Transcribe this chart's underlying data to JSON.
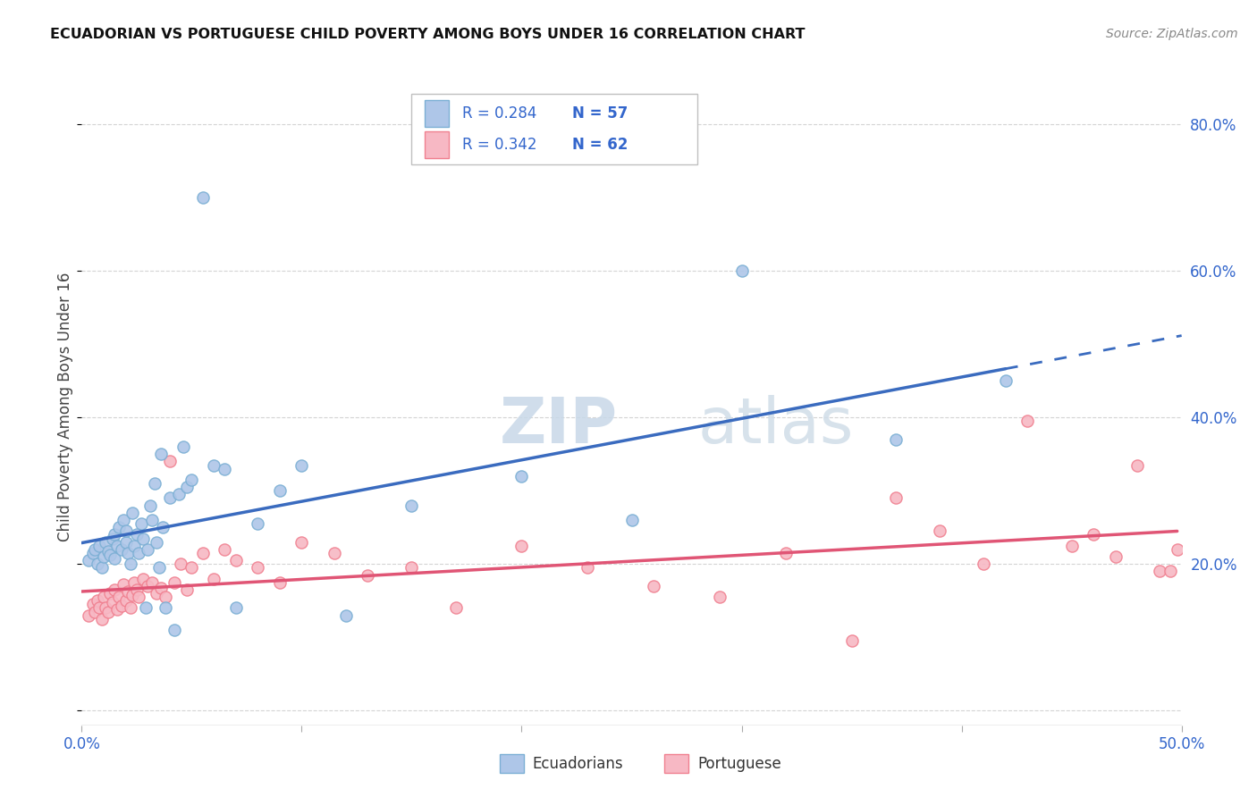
{
  "title": "ECUADORIAN VS PORTUGUESE CHILD POVERTY AMONG BOYS UNDER 16 CORRELATION CHART",
  "source": "Source: ZipAtlas.com",
  "ylabel": "Child Poverty Among Boys Under 16",
  "xlim": [
    0.0,
    0.5
  ],
  "ylim": [
    -0.02,
    0.85
  ],
  "ecuador_color": "#7bafd4",
  "ecuador_fill": "#aec6e8",
  "portuguese_color": "#f08090",
  "portuguese_fill": "#f7b8c4",
  "line_ecuador_color": "#3a6bbf",
  "line_portuguese_color": "#e05575",
  "R_ecuador": 0.284,
  "N_ecuador": 57,
  "R_portuguese": 0.342,
  "N_portuguese": 62,
  "ecuador_x": [
    0.003,
    0.005,
    0.006,
    0.007,
    0.008,
    0.009,
    0.01,
    0.011,
    0.012,
    0.013,
    0.014,
    0.015,
    0.015,
    0.016,
    0.017,
    0.018,
    0.019,
    0.02,
    0.02,
    0.021,
    0.022,
    0.023,
    0.024,
    0.025,
    0.026,
    0.027,
    0.028,
    0.029,
    0.03,
    0.031,
    0.032,
    0.033,
    0.034,
    0.035,
    0.036,
    0.037,
    0.038,
    0.04,
    0.042,
    0.044,
    0.046,
    0.048,
    0.05,
    0.055,
    0.06,
    0.065,
    0.07,
    0.08,
    0.09,
    0.1,
    0.12,
    0.15,
    0.2,
    0.25,
    0.3,
    0.37,
    0.42
  ],
  "ecuador_y": [
    0.205,
    0.215,
    0.22,
    0.2,
    0.225,
    0.195,
    0.21,
    0.23,
    0.218,
    0.212,
    0.235,
    0.24,
    0.208,
    0.225,
    0.25,
    0.22,
    0.26,
    0.23,
    0.245,
    0.215,
    0.2,
    0.27,
    0.225,
    0.24,
    0.215,
    0.255,
    0.235,
    0.14,
    0.22,
    0.28,
    0.26,
    0.31,
    0.23,
    0.195,
    0.35,
    0.25,
    0.14,
    0.29,
    0.11,
    0.295,
    0.36,
    0.305,
    0.315,
    0.7,
    0.335,
    0.33,
    0.14,
    0.255,
    0.3,
    0.335,
    0.13,
    0.28,
    0.32,
    0.26,
    0.6,
    0.37,
    0.45
  ],
  "portuguese_x": [
    0.003,
    0.005,
    0.006,
    0.007,
    0.008,
    0.009,
    0.01,
    0.011,
    0.012,
    0.013,
    0.014,
    0.015,
    0.016,
    0.017,
    0.018,
    0.019,
    0.02,
    0.021,
    0.022,
    0.023,
    0.024,
    0.025,
    0.026,
    0.028,
    0.03,
    0.032,
    0.034,
    0.036,
    0.038,
    0.04,
    0.042,
    0.045,
    0.048,
    0.05,
    0.055,
    0.06,
    0.065,
    0.07,
    0.08,
    0.09,
    0.1,
    0.115,
    0.13,
    0.15,
    0.17,
    0.2,
    0.23,
    0.26,
    0.29,
    0.32,
    0.35,
    0.37,
    0.39,
    0.41,
    0.43,
    0.45,
    0.46,
    0.47,
    0.48,
    0.49,
    0.495,
    0.498
  ],
  "portuguese_y": [
    0.13,
    0.145,
    0.135,
    0.15,
    0.14,
    0.125,
    0.155,
    0.14,
    0.135,
    0.16,
    0.148,
    0.165,
    0.138,
    0.155,
    0.143,
    0.172,
    0.15,
    0.162,
    0.14,
    0.158,
    0.175,
    0.165,
    0.155,
    0.18,
    0.17,
    0.175,
    0.16,
    0.168,
    0.155,
    0.34,
    0.175,
    0.2,
    0.165,
    0.195,
    0.215,
    0.18,
    0.22,
    0.205,
    0.195,
    0.175,
    0.23,
    0.215,
    0.185,
    0.195,
    0.14,
    0.225,
    0.195,
    0.17,
    0.155,
    0.215,
    0.095,
    0.29,
    0.245,
    0.2,
    0.395,
    0.225,
    0.24,
    0.21,
    0.335,
    0.19,
    0.19,
    0.22
  ],
  "background_color": "#ffffff",
  "grid_color": "#d0d0d0",
  "watermark_zip_color": "#c8d8e8",
  "watermark_atlas_color": "#d0dde8",
  "legend_R_color": "#3366cc",
  "legend_N_color": "#3366cc",
  "tick_color": "#3366cc"
}
